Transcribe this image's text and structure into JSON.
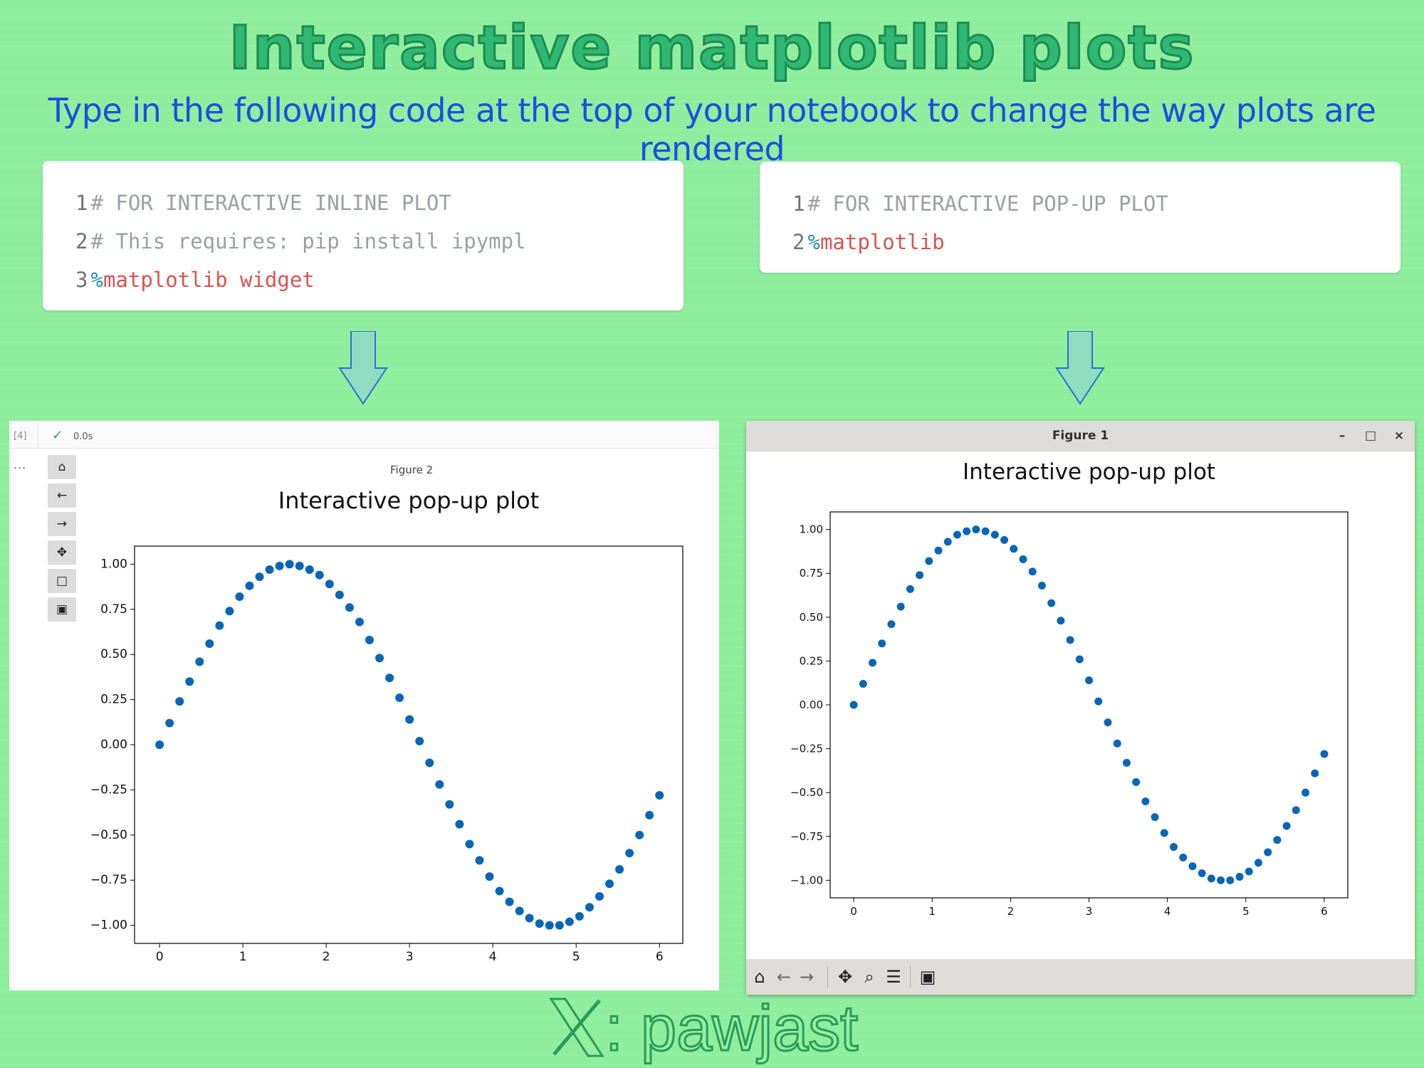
{
  "header": {
    "title": "Interactive matplotlib plots",
    "subtitle": "Type in the following code at the top of your notebook to change the way plots are rendered"
  },
  "code_left": {
    "lines": [
      {
        "num": "1",
        "text": "# FOR INTERACTIVE INLINE PLOT"
      },
      {
        "num": "2",
        "text": "# This requires: pip install ipympl"
      },
      {
        "num": "3",
        "pct": "%",
        "magic": "matplotlib widget"
      }
    ]
  },
  "code_right": {
    "lines": [
      {
        "num": "1",
        "text": "# FOR INTERACTIVE POP-UP PLOT"
      },
      {
        "num": "2",
        "pct": "%",
        "magic": "matplotlib"
      }
    ]
  },
  "notebook": {
    "cell_number": "[4]",
    "exec_time": "0.0s",
    "more": "...",
    "figure_label": "Figure 2",
    "toolbar": [
      "home-icon",
      "back-icon",
      "forward-icon",
      "pan-icon",
      "zoom-rect-icon",
      "save-icon"
    ]
  },
  "popup": {
    "window_title": "Figure 1",
    "controls": {
      "minimize": "–",
      "maximize": "□",
      "close": "×"
    },
    "toolbar": [
      "home-icon",
      "back-icon",
      "forward-icon",
      "pan-icon",
      "zoom-icon",
      "configure-icon",
      "save-icon"
    ]
  },
  "footer": {
    "handle": ": pawjast"
  },
  "colors": {
    "background": "#8eee9d",
    "title": "#2eb872",
    "subtitle": "#1a4fe0",
    "marker": "#0a66b5",
    "magic_text": "#d9534f",
    "comment_text": "#9aa0a6"
  },
  "chart_data": [
    {
      "type": "scatter",
      "title": "Interactive pop-up plot",
      "xlim": [
        -0.3,
        6.28
      ],
      "ylim": [
        -1.1,
        1.1
      ],
      "xticks": [
        "0",
        "1",
        "2",
        "3",
        "4",
        "5",
        "6"
      ],
      "yticks": [
        "1.00",
        "0.75",
        "0.50",
        "0.25",
        "0.00",
        "−0.25",
        "−0.50",
        "−0.75",
        "−1.00"
      ],
      "grid": false,
      "series": [
        {
          "x": [
            0.0,
            0.12,
            0.24,
            0.36,
            0.48,
            0.6,
            0.72,
            0.84,
            0.96,
            1.08,
            1.2,
            1.32,
            1.44,
            1.56,
            1.68,
            1.8,
            1.92,
            2.04,
            2.16,
            2.28,
            2.4,
            2.52,
            2.64,
            2.76,
            2.88,
            3.0,
            3.12,
            3.24,
            3.36,
            3.48,
            3.6,
            3.72,
            3.84,
            3.96,
            4.08,
            4.2,
            4.32,
            4.44,
            4.56,
            4.68,
            4.8,
            4.92,
            5.04,
            5.16,
            5.28,
            5.4,
            5.52,
            5.64,
            5.76,
            5.88,
            6.0
          ],
          "y": [
            0.0,
            0.12,
            0.24,
            0.35,
            0.46,
            0.56,
            0.66,
            0.74,
            0.82,
            0.88,
            0.93,
            0.97,
            0.99,
            1.0,
            0.99,
            0.97,
            0.94,
            0.89,
            0.83,
            0.76,
            0.68,
            0.58,
            0.48,
            0.37,
            0.26,
            0.14,
            0.02,
            -0.1,
            -0.22,
            -0.33,
            -0.44,
            -0.55,
            -0.64,
            -0.73,
            -0.81,
            -0.87,
            -0.92,
            -0.96,
            -0.99,
            -1.0,
            -1.0,
            -0.98,
            -0.95,
            -0.9,
            -0.84,
            -0.77,
            -0.69,
            -0.6,
            -0.5,
            -0.39,
            -0.28
          ]
        }
      ]
    },
    {
      "type": "scatter",
      "title": "Interactive pop-up plot",
      "xlim": [
        -0.3,
        6.3
      ],
      "ylim": [
        -1.1,
        1.1
      ],
      "xticks": [
        "0",
        "1",
        "2",
        "3",
        "4",
        "5",
        "6"
      ],
      "yticks": [
        "1.00",
        "0.75",
        "0.50",
        "0.25",
        "0.00",
        "−0.25",
        "−0.50",
        "−0.75",
        "−1.00"
      ],
      "grid": false,
      "series": [
        {
          "x": [
            0.0,
            0.12,
            0.24,
            0.36,
            0.48,
            0.6,
            0.72,
            0.84,
            0.96,
            1.08,
            1.2,
            1.32,
            1.44,
            1.56,
            1.68,
            1.8,
            1.92,
            2.04,
            2.16,
            2.28,
            2.4,
            2.52,
            2.64,
            2.76,
            2.88,
            3.0,
            3.12,
            3.24,
            3.36,
            3.48,
            3.6,
            3.72,
            3.84,
            3.96,
            4.08,
            4.2,
            4.32,
            4.44,
            4.56,
            4.68,
            4.8,
            4.92,
            5.04,
            5.16,
            5.28,
            5.4,
            5.52,
            5.64,
            5.76,
            5.88,
            6.0
          ],
          "y": [
            0.0,
            0.12,
            0.24,
            0.35,
            0.46,
            0.56,
            0.66,
            0.74,
            0.82,
            0.88,
            0.93,
            0.97,
            0.99,
            1.0,
            0.99,
            0.97,
            0.94,
            0.89,
            0.83,
            0.76,
            0.68,
            0.58,
            0.48,
            0.37,
            0.26,
            0.14,
            0.02,
            -0.1,
            -0.22,
            -0.33,
            -0.44,
            -0.55,
            -0.64,
            -0.73,
            -0.81,
            -0.87,
            -0.92,
            -0.96,
            -0.99,
            -1.0,
            -1.0,
            -0.98,
            -0.95,
            -0.9,
            -0.84,
            -0.77,
            -0.69,
            -0.6,
            -0.5,
            -0.39,
            -0.28
          ]
        }
      ]
    }
  ]
}
